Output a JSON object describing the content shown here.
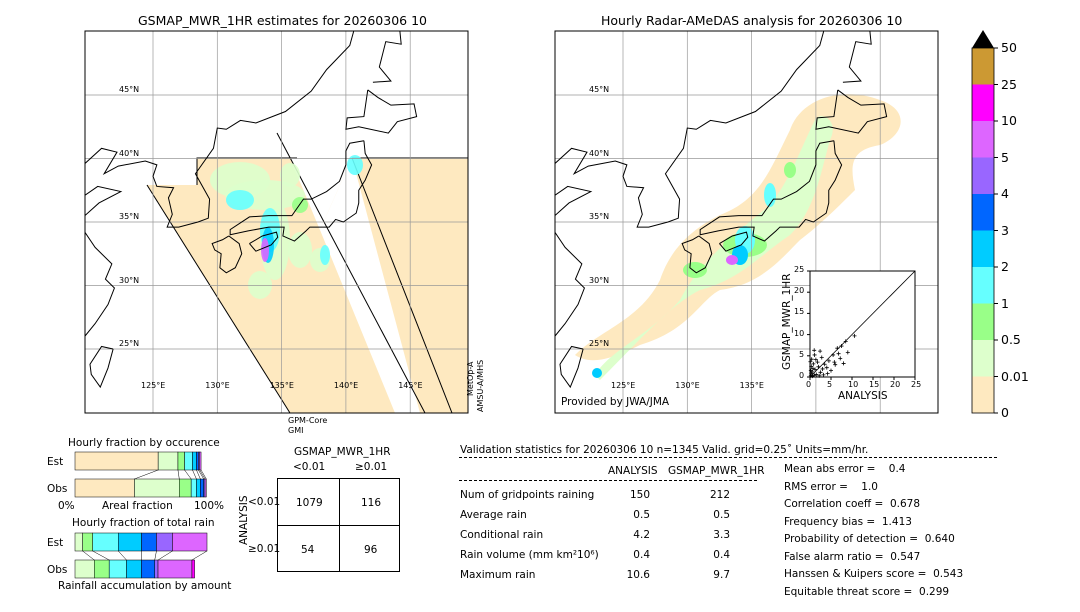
{
  "left_map": {
    "title": "GSMAP_MWR_1HR estimates for 20260306 10",
    "lat_labels": [
      "45°N",
      "40°N",
      "35°N",
      "30°N",
      "25°N"
    ],
    "lon_labels": [
      "125°E",
      "130°E",
      "135°E",
      "140°E",
      "145°E"
    ],
    "sensor_bottom": [
      "GPM-Core",
      "GMI"
    ],
    "sensor_right": [
      "MetOp-A",
      "AMSU-A/MHS"
    ]
  },
  "right_map": {
    "title": "Hourly Radar-AMeDAS analysis for 20260306 10",
    "lat_labels": [
      "45°N",
      "40°N",
      "35°N",
      "30°N",
      "25°N"
    ],
    "lon_labels": [
      "125°E",
      "130°E",
      "135°E"
    ],
    "credit": "Provided by JWA/JMA"
  },
  "colorbar": {
    "ticks": [
      "0",
      "0.01",
      "0.5",
      "1",
      "2",
      "3",
      "4",
      "5",
      "10",
      "25",
      "50"
    ],
    "colors": [
      "#fee9c0",
      "#ddffcc",
      "#99ff88",
      "#66ffff",
      "#00ccff",
      "#0066ff",
      "#9966ff",
      "#dd66ff",
      "#ff00ff",
      "#cc9933"
    ],
    "extend_color": "#000000"
  },
  "chart_data": [
    {
      "type": "scatter",
      "xlabel": "ANALYSIS",
      "ylabel": "GSMAP_MWR_1HR",
      "xlim": [
        0,
        25
      ],
      "ylim": [
        0,
        25
      ],
      "ticks": [
        "0",
        "5",
        "10",
        "15",
        "20",
        "25"
      ],
      "points": [
        [
          0.2,
          0.3
        ],
        [
          0.5,
          1.2
        ],
        [
          0.3,
          2.5
        ],
        [
          1,
          0.4
        ],
        [
          1.2,
          1.8
        ],
        [
          0.8,
          3.1
        ],
        [
          1.5,
          0.6
        ],
        [
          2,
          2.4
        ],
        [
          0.4,
          4.2
        ],
        [
          2.5,
          1.1
        ],
        [
          0.6,
          0.2
        ],
        [
          1.8,
          3.5
        ],
        [
          3,
          1.9
        ],
        [
          0.2,
          1.5
        ],
        [
          1.1,
          5.2
        ],
        [
          2.2,
          0.3
        ],
        [
          3.5,
          3
        ],
        [
          0.7,
          2
        ],
        [
          4,
          2.2
        ],
        [
          1.4,
          4.1
        ],
        [
          2.8,
          4.6
        ],
        [
          0.3,
          0.9
        ],
        [
          5,
          1.5
        ],
        [
          4.5,
          3.8
        ],
        [
          6,
          2.9
        ],
        [
          1,
          6.3
        ],
        [
          5.5,
          5.2
        ],
        [
          7.2,
          4.4
        ],
        [
          6.5,
          6.8
        ],
        [
          8,
          3.2
        ],
        [
          7.5,
          7.3
        ],
        [
          9,
          5.8
        ],
        [
          10.6,
          9.7
        ],
        [
          8.5,
          8.4
        ],
        [
          6.8,
          5.5
        ],
        [
          2.4,
          6.1
        ],
        [
          3.2,
          0.5
        ],
        [
          0.1,
          3.6
        ],
        [
          4.2,
          0.8
        ],
        [
          5.8,
          3.5
        ]
      ]
    },
    {
      "type": "bar",
      "title": "Hourly fraction by occurence",
      "xlabel": "Areal fraction",
      "x_ticks": [
        "0%",
        "100%"
      ],
      "rows": [
        "Est",
        "Obs"
      ],
      "series": {
        "Est": [
          0.63,
          0.15,
          0.05,
          0.06,
          0.03,
          0.015,
          0.01,
          0.01
        ],
        "Obs": [
          0.45,
          0.34,
          0.09,
          0.04,
          0.03,
          0.025,
          0.01,
          0.01
        ]
      },
      "colors": [
        "#fee9c0",
        "#ddffcc",
        "#99ff88",
        "#66ffff",
        "#00ccff",
        "#0066ff",
        "#9966ff",
        "#dd66ff"
      ]
    },
    {
      "type": "bar",
      "title": "Hourly fraction of total rain",
      "xlabel": "Rainfall accumulation by amount",
      "rows": [
        "Est",
        "Obs"
      ],
      "series": {
        "Est": [
          0.058,
          0.076,
          0.194,
          0.176,
          0.113,
          0.121,
          0.262
        ],
        "Obs": [
          0.146,
          0.113,
          0.131,
          0.113,
          0.101,
          0.025,
          0.257,
          0.02
        ]
      },
      "colors_est": [
        "#ddffcc",
        "#99ff88",
        "#66ffff",
        "#00ccff",
        "#0066ff",
        "#9966ff",
        "#dd66ff"
      ],
      "colors_obs": [
        "#ddffcc",
        "#99ff88",
        "#66ffff",
        "#00ccff",
        "#0066ff",
        "#9966ff",
        "#dd66ff",
        "#ff00ff"
      ]
    }
  ],
  "contingency": {
    "title": "GSMAP_MWR_1HR",
    "col_labels": [
      "<0.01",
      "≥0.01"
    ],
    "row_title": "ANALYSIS",
    "row_labels": [
      "<0.01",
      "≥0.01"
    ],
    "cells": [
      [
        "1079",
        "116"
      ],
      [
        "54",
        "96"
      ]
    ]
  },
  "validation": {
    "header": "Validation statistics for 20260306 10  n=1345 Valid. grid=0.25˚ Units=mm/hr.",
    "col_headers": [
      "ANALYSIS",
      "GSMAP_MWR_1HR"
    ],
    "rows": [
      {
        "label": "Num of gridpoints raining",
        "a": "150",
        "g": "212"
      },
      {
        "label": "Average rain",
        "a": "0.5",
        "g": "0.5"
      },
      {
        "label": "Conditional rain",
        "a": "4.2",
        "g": "3.3"
      },
      {
        "label": "Rain volume (mm km²10⁶)",
        "a": "0.4",
        "g": "0.4"
      },
      {
        "label": "Maximum rain",
        "a": "10.6",
        "g": "9.7"
      }
    ],
    "scores": [
      "Mean abs error =    0.4",
      "RMS error =    1.0",
      "Correlation coeff =  0.678",
      "Frequency bias =  1.413",
      "Probability of detection =  0.640",
      "False alarm ratio =  0.547",
      "Hanssen & Kuipers score =  0.543",
      "Equitable threat score =  0.299"
    ]
  }
}
